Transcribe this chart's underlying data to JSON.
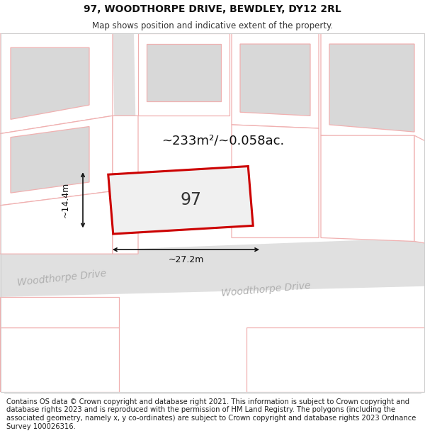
{
  "title_line1": "97, WOODTHORPE DRIVE, BEWDLEY, DY12 2RL",
  "title_line2": "Map shows position and indicative extent of the property.",
  "footer_text": "Contains OS data © Crown copyright and database right 2021. This information is subject to Crown copyright and database rights 2023 and is reproduced with the permission of HM Land Registry. The polygons (including the associated geometry, namely x, y co-ordinates) are subject to Crown copyright and database rights 2023 Ordnance Survey 100026316.",
  "area_label": "~233m²/~0.058ac.",
  "width_label": "~27.2m",
  "height_label": "~14.4m",
  "house_number": "97",
  "property_outline_color": "#cc0000",
  "property_fill_color": "#f0f0f0",
  "nearby_outline_color": "#f0b0b0",
  "road_fill_color": "#e0e0e0",
  "building_fill_color": "#d8d8d8",
  "white": "#ffffff",
  "road_text_color": "#b0b0b0",
  "dimension_color": "#111111",
  "title_fontsize": 10,
  "subtitle_fontsize": 8.5,
  "footer_fontsize": 7.2,
  "area_label_fontsize": 13,
  "house_number_fontsize": 17,
  "road_label_fontsize": 10
}
